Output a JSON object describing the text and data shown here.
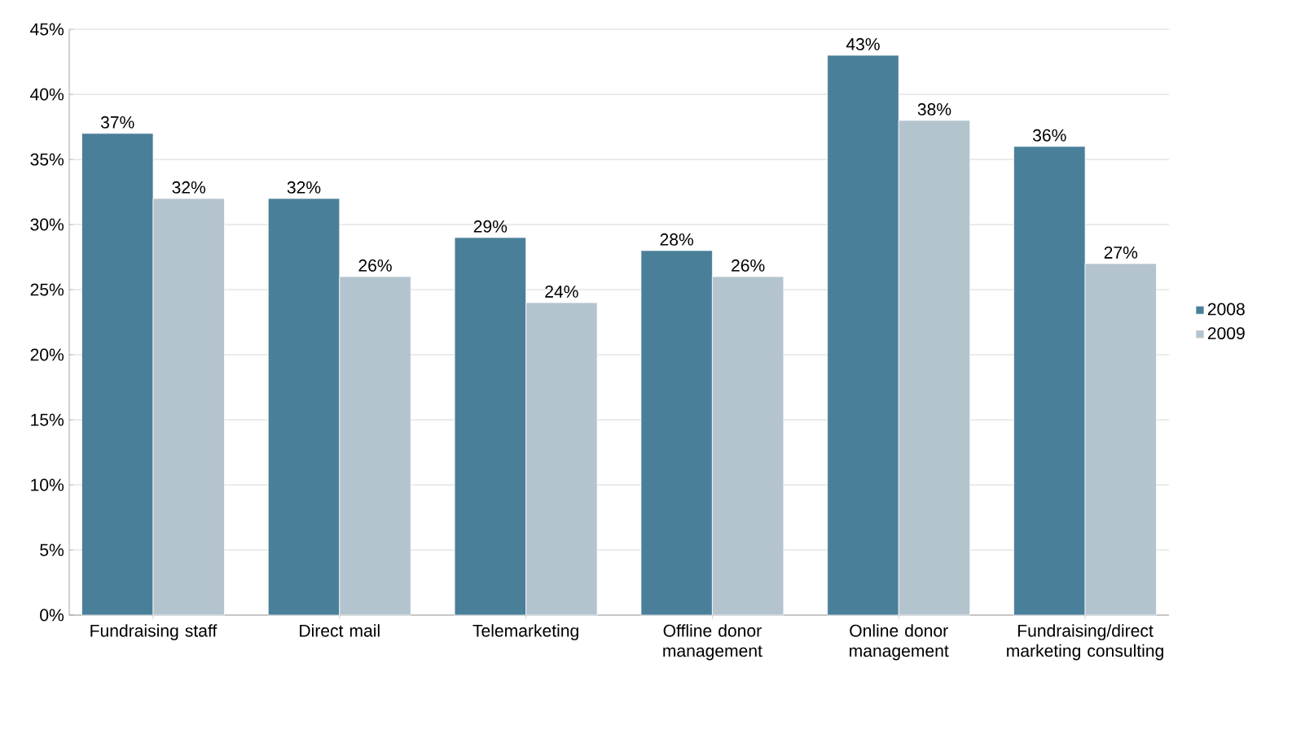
{
  "chart_data": {
    "type": "bar",
    "categories": [
      "Fundraising staff",
      "Direct mail",
      "Telemarketing",
      "Offline donor management",
      "Online donor management",
      "Fundraising/direct marketing consulting"
    ],
    "series": [
      {
        "name": "2008",
        "color": "#4a7f99",
        "values": [
          37,
          32,
          29,
          28,
          43,
          36
        ],
        "value_labels": [
          "37%",
          "32%",
          "29%",
          "28%",
          "43%",
          "36%"
        ]
      },
      {
        "name": "2009",
        "color": "#b4c4cf",
        "values": [
          32,
          26,
          24,
          26,
          38,
          27
        ],
        "value_labels": [
          "32%",
          "26%",
          "24%",
          "26%",
          "38%",
          "27%"
        ]
      }
    ],
    "ylim": [
      0,
      45
    ],
    "yticks": [
      {
        "value": 0,
        "label": "0%"
      },
      {
        "value": 5,
        "label": "5%"
      },
      {
        "value": 10,
        "label": "10%"
      },
      {
        "value": 15,
        "label": "15%"
      },
      {
        "value": 20,
        "label": "20%"
      },
      {
        "value": 25,
        "label": "25%"
      },
      {
        "value": 30,
        "label": "30%"
      },
      {
        "value": 35,
        "label": "35%"
      },
      {
        "value": 40,
        "label": "40%"
      },
      {
        "value": 45,
        "label": "45%"
      }
    ],
    "grid": "y",
    "legend": "right"
  }
}
